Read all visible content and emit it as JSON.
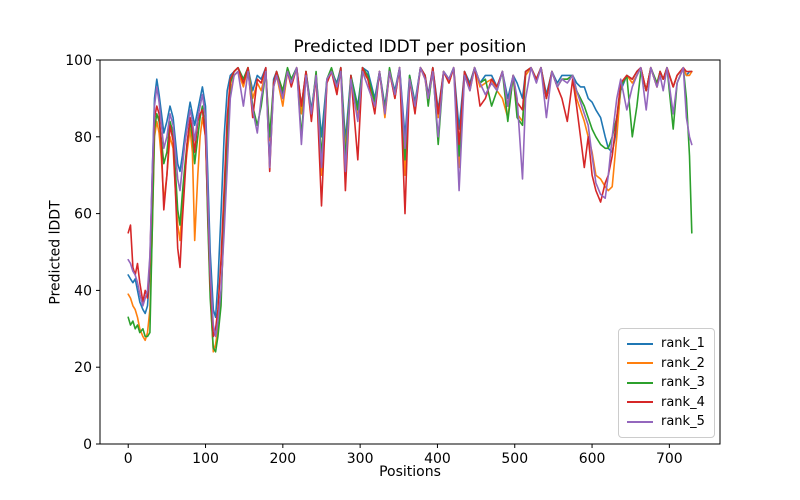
{
  "figure": {
    "title": "Predicted lDDT per position",
    "xlabel": "Positions",
    "ylabel": "Predicted lDDT"
  },
  "chart_data": {
    "type": "line",
    "title": "Predicted lDDT per position",
    "xlabel": "Positions",
    "ylabel": "Predicted lDDT",
    "xlim": [
      -36.5,
      765.5
    ],
    "ylim": [
      0,
      100
    ],
    "x_ticks": [
      0,
      100,
      200,
      300,
      400,
      500,
      600,
      700
    ],
    "y_ticks": [
      0,
      20,
      40,
      60,
      80,
      100
    ],
    "grid": false,
    "legend_position": "lower right",
    "x": [
      0,
      3,
      6,
      9,
      12,
      15,
      19,
      22,
      25,
      28,
      31,
      34,
      37,
      40,
      43,
      46,
      50,
      54,
      58,
      61,
      64,
      67,
      70,
      73,
      76,
      80,
      83,
      86,
      90,
      93,
      96,
      100,
      103,
      106,
      110,
      113,
      116,
      120,
      124,
      128,
      132,
      137,
      142,
      149,
      155,
      161,
      167,
      172,
      178,
      183,
      188,
      192,
      200,
      206,
      211,
      218,
      224,
      230,
      237,
      243,
      250,
      257,
      263,
      270,
      275,
      281,
      288,
      297,
      303,
      310,
      319,
      325,
      332,
      338,
      345,
      351,
      358,
      364,
      371,
      378,
      384,
      388,
      394,
      401,
      408,
      415,
      421,
      428,
      435,
      442,
      448,
      455,
      462,
      470,
      477,
      484,
      491,
      498,
      503,
      510,
      514,
      521,
      528,
      534,
      541,
      548,
      555,
      561,
      568,
      575,
      580,
      585,
      590,
      595,
      600,
      605,
      611,
      617,
      621,
      626,
      632,
      637,
      645,
      652,
      658,
      663,
      670,
      676,
      684,
      688,
      692,
      697,
      705,
      710,
      714,
      718,
      722,
      726,
      729
    ],
    "series": [
      {
        "name": "rank_1",
        "color": "#1f77b4",
        "values": [
          44,
          43,
          42,
          43,
          40,
          37,
          35,
          34,
          36,
          45,
          70,
          90,
          95,
          91,
          86,
          81,
          84,
          88,
          85,
          79,
          73,
          71,
          75,
          80,
          84,
          89,
          86,
          83,
          87,
          90,
          93,
          88,
          70,
          50,
          35,
          33,
          42,
          60,
          80,
          92,
          96,
          97,
          98,
          95,
          98,
          92,
          96,
          95,
          98,
          73,
          95,
          97,
          91,
          97,
          95,
          98,
          88,
          97,
          87,
          96,
          80,
          95,
          97,
          94,
          98,
          79,
          96,
          88,
          98,
          97,
          90,
          97,
          88,
          97,
          92,
          98,
          80,
          96,
          89,
          98,
          96,
          91,
          98,
          87,
          97,
          95,
          98,
          82,
          97,
          94,
          98,
          94,
          96,
          96,
          93,
          97,
          90,
          96,
          94,
          90,
          97,
          98,
          95,
          98,
          91,
          97,
          94,
          96,
          96,
          96,
          94,
          93,
          93,
          90,
          89,
          87,
          85,
          80,
          77,
          76,
          82,
          92,
          96,
          95,
          97,
          98,
          92,
          98,
          93,
          97,
          95,
          98,
          93,
          96,
          97,
          98,
          96,
          97,
          97
        ]
      },
      {
        "name": "rank_2",
        "color": "#ff7f0e",
        "values": [
          39,
          38,
          36,
          35,
          33,
          30,
          28,
          27,
          29,
          35,
          55,
          80,
          84,
          81,
          74,
          63,
          70,
          80,
          77,
          66,
          57,
          53,
          62,
          70,
          76,
          82,
          76,
          53,
          70,
          80,
          85,
          80,
          60,
          40,
          24,
          26,
          30,
          38,
          58,
          76,
          92,
          96,
          97,
          93,
          98,
          90,
          94,
          92,
          97,
          79,
          93,
          96,
          88,
          97,
          94,
          98,
          86,
          97,
          85,
          96,
          70,
          94,
          97,
          92,
          97,
          76,
          95,
          85,
          97,
          95,
          88,
          97,
          85,
          97,
          90,
          98,
          70,
          95,
          87,
          98,
          95,
          89,
          97,
          85,
          97,
          94,
          98,
          72,
          96,
          92,
          98,
          93,
          94,
          95,
          92,
          90,
          85,
          96,
          86,
          84,
          96,
          98,
          95,
          98,
          90,
          97,
          93,
          95,
          95,
          96,
          90,
          87,
          84,
          80,
          76,
          70,
          69,
          67,
          66,
          67,
          80,
          93,
          96,
          94,
          96,
          98,
          92,
          98,
          93,
          97,
          95,
          98,
          93,
          96,
          97,
          98,
          96,
          96,
          97
        ]
      },
      {
        "name": "rank_3",
        "color": "#2ca02c",
        "values": [
          33,
          31,
          32,
          30,
          31,
          29,
          30,
          28,
          28,
          29,
          55,
          82,
          86,
          84,
          79,
          73,
          76,
          84,
          81,
          71,
          61,
          57,
          65,
          72,
          78,
          84,
          80,
          73,
          80,
          85,
          88,
          82,
          58,
          38,
          25,
          24,
          28,
          36,
          60,
          80,
          94,
          97,
          98,
          95,
          98,
          88,
          83,
          88,
          97,
          80,
          94,
          97,
          92,
          98,
          95,
          98,
          80,
          97,
          86,
          97,
          75,
          95,
          98,
          93,
          98,
          74,
          96,
          87,
          98,
          96,
          89,
          97,
          87,
          98,
          91,
          98,
          74,
          96,
          88,
          98,
          96,
          88,
          98,
          78,
          97,
          95,
          98,
          75,
          97,
          93,
          98,
          94,
          95,
          88,
          92,
          97,
          84,
          96,
          85,
          83,
          97,
          98,
          95,
          98,
          90,
          97,
          93,
          95,
          95,
          96,
          92,
          90,
          88,
          85,
          82,
          80,
          78,
          77,
          77,
          80,
          85,
          93,
          96,
          80,
          88,
          97,
          92,
          98,
          94,
          97,
          95,
          98,
          82,
          94,
          96,
          98,
          90,
          75,
          55
        ]
      },
      {
        "name": "rank_4",
        "color": "#d62728",
        "values": [
          55,
          57,
          46,
          44,
          47,
          42,
          37,
          40,
          38,
          48,
          68,
          85,
          88,
          86,
          77,
          61,
          70,
          83,
          79,
          66,
          51,
          46,
          58,
          68,
          78,
          85,
          82,
          76,
          84,
          86,
          87,
          80,
          62,
          42,
          28,
          30,
          35,
          48,
          66,
          85,
          95,
          97,
          98,
          94,
          98,
          85,
          95,
          94,
          98,
          71,
          94,
          97,
          90,
          97,
          93,
          98,
          88,
          97,
          84,
          96,
          62,
          94,
          97,
          91,
          98,
          66,
          96,
          74,
          98,
          95,
          86,
          97,
          86,
          97,
          90,
          98,
          60,
          95,
          86,
          98,
          96,
          90,
          98,
          86,
          97,
          94,
          98,
          78,
          97,
          93,
          98,
          88,
          90,
          95,
          93,
          97,
          88,
          96,
          89,
          87,
          97,
          98,
          95,
          98,
          90,
          97,
          93,
          90,
          84,
          95,
          88,
          80,
          72,
          80,
          70,
          66,
          63,
          68,
          70,
          75,
          85,
          94,
          96,
          95,
          97,
          98,
          92,
          98,
          93,
          97,
          95,
          98,
          93,
          96,
          97,
          98,
          97,
          97,
          97
        ]
      },
      {
        "name": "rank_5",
        "color": "#9467bd",
        "values": [
          48,
          47,
          45,
          44,
          42,
          39,
          36,
          38,
          40,
          49,
          70,
          88,
          93,
          89,
          83,
          77,
          80,
          86,
          83,
          76,
          69,
          66,
          72,
          78,
          82,
          87,
          84,
          79,
          85,
          88,
          91,
          85,
          65,
          45,
          31,
          28,
          32,
          40,
          55,
          72,
          90,
          96,
          97,
          88,
          97,
          87,
          81,
          90,
          97,
          72,
          93,
          96,
          90,
          97,
          94,
          98,
          78,
          96,
          86,
          96,
          72,
          95,
          97,
          93,
          97,
          71,
          95,
          84,
          97,
          93,
          88,
          97,
          86,
          97,
          91,
          98,
          77,
          95,
          88,
          98,
          95,
          90,
          97,
          80,
          97,
          95,
          98,
          66,
          96,
          92,
          98,
          94,
          91,
          94,
          92,
          97,
          88,
          96,
          90,
          69,
          90,
          98,
          94,
          98,
          85,
          97,
          93,
          95,
          94,
          96,
          92,
          89,
          86,
          83,
          75,
          68,
          65,
          64,
          70,
          80,
          90,
          95,
          87,
          93,
          96,
          98,
          87,
          98,
          93,
          96,
          92,
          98,
          86,
          94,
          96,
          98,
          85,
          80,
          78
        ]
      }
    ]
  }
}
